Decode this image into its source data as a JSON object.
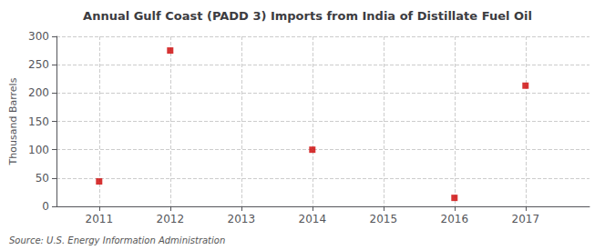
{
  "chart_data": {
    "type": "scatter",
    "title": "Annual Gulf Coast (PADD 3) Imports from India of Distillate Fuel Oil",
    "ylabel": "Thousand Barrels",
    "source": "Source: U.S. Energy Information Administration",
    "x": [
      2011,
      2012,
      2014,
      2016,
      2017
    ],
    "values": [
      44,
      275,
      100,
      15,
      213
    ],
    "xlim": [
      2010.4,
      2017.9
    ],
    "xticks": [
      2011,
      2012,
      2013,
      2014,
      2015,
      2016,
      2017
    ],
    "ylim": [
      0,
      300
    ],
    "yticks": [
      0,
      50,
      100,
      150,
      200,
      250,
      300
    ],
    "grid": true,
    "color": "#cc0000",
    "marker": "square"
  }
}
